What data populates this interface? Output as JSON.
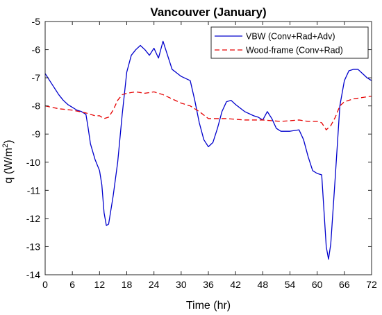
{
  "chart_data": {
    "type": "line",
    "title": "Vancouver (January)",
    "xlabel": "Time (hr)",
    "ylabel_prefix": "q (W/m",
    "ylabel_sup": "2",
    "ylabel_suffix": ")",
    "xlim": [
      0,
      72
    ],
    "ylim": [
      -14,
      -5
    ],
    "xticks": [
      "0",
      "6",
      "12",
      "18",
      "24",
      "30",
      "36",
      "42",
      "48",
      "54",
      "60",
      "66",
      "72"
    ],
    "yticks": [
      "-5",
      "-6",
      "-7",
      "-8",
      "-9",
      "-10",
      "-11",
      "-12",
      "-13",
      "-14"
    ],
    "grid": false,
    "legend_position": "top-right",
    "series": [
      {
        "name": "VBW (Conv+Rad+Adv)",
        "color": "#0000cc",
        "style": "solid",
        "points": [
          [
            0,
            -6.85
          ],
          [
            1,
            -7.1
          ],
          [
            2,
            -7.35
          ],
          [
            3,
            -7.6
          ],
          [
            4,
            -7.8
          ],
          [
            5,
            -7.95
          ],
          [
            6,
            -8.05
          ],
          [
            7,
            -8.15
          ],
          [
            8,
            -8.2
          ],
          [
            9,
            -8.3
          ],
          [
            9.5,
            -8.8
          ],
          [
            10,
            -9.35
          ],
          [
            11,
            -9.9
          ],
          [
            12,
            -10.3
          ],
          [
            12.5,
            -10.8
          ],
          [
            13,
            -11.8
          ],
          [
            13.5,
            -12.25
          ],
          [
            14,
            -12.2
          ],
          [
            15,
            -11.2
          ],
          [
            16,
            -10.0
          ],
          [
            17,
            -8.3
          ],
          [
            18,
            -6.8
          ],
          [
            19,
            -6.2
          ],
          [
            20,
            -6.0
          ],
          [
            21,
            -5.85
          ],
          [
            22,
            -6.0
          ],
          [
            23,
            -6.2
          ],
          [
            24,
            -5.95
          ],
          [
            25,
            -6.3
          ],
          [
            26,
            -5.7
          ],
          [
            27,
            -6.2
          ],
          [
            28,
            -6.7
          ],
          [
            30,
            -6.95
          ],
          [
            32,
            -7.1
          ],
          [
            33,
            -7.8
          ],
          [
            34,
            -8.6
          ],
          [
            35,
            -9.2
          ],
          [
            36,
            -9.45
          ],
          [
            37,
            -9.3
          ],
          [
            38,
            -8.8
          ],
          [
            39,
            -8.2
          ],
          [
            40,
            -7.85
          ],
          [
            41,
            -7.8
          ],
          [
            42,
            -7.95
          ],
          [
            44,
            -8.2
          ],
          [
            46,
            -8.35
          ],
          [
            47,
            -8.4
          ],
          [
            48,
            -8.5
          ],
          [
            49,
            -8.2
          ],
          [
            50,
            -8.45
          ],
          [
            51,
            -8.8
          ],
          [
            52,
            -8.9
          ],
          [
            54,
            -8.9
          ],
          [
            56,
            -8.85
          ],
          [
            57,
            -9.2
          ],
          [
            58,
            -9.8
          ],
          [
            59,
            -10.3
          ],
          [
            60,
            -10.4
          ],
          [
            61,
            -10.45
          ],
          [
            62,
            -13.0
          ],
          [
            62.5,
            -13.45
          ],
          [
            63,
            -12.9
          ],
          [
            64,
            -10.5
          ],
          [
            65,
            -8.0
          ],
          [
            66,
            -7.1
          ],
          [
            67,
            -6.75
          ],
          [
            68,
            -6.7
          ],
          [
            69,
            -6.7
          ],
          [
            70,
            -6.85
          ],
          [
            71,
            -7.0
          ],
          [
            72,
            -7.1
          ]
        ]
      },
      {
        "name": "Wood-frame (Conv+Rad)",
        "color": "#e60000",
        "style": "dashed",
        "points": [
          [
            0,
            -8.0
          ],
          [
            3,
            -8.1
          ],
          [
            6,
            -8.15
          ],
          [
            9,
            -8.25
          ],
          [
            11,
            -8.35
          ],
          [
            12,
            -8.35
          ],
          [
            13,
            -8.45
          ],
          [
            14,
            -8.4
          ],
          [
            15,
            -8.15
          ],
          [
            16,
            -7.8
          ],
          [
            17,
            -7.6
          ],
          [
            18,
            -7.55
          ],
          [
            20,
            -7.5
          ],
          [
            22,
            -7.55
          ],
          [
            24,
            -7.5
          ],
          [
            26,
            -7.6
          ],
          [
            28,
            -7.75
          ],
          [
            30,
            -7.9
          ],
          [
            32,
            -8.0
          ],
          [
            34,
            -8.2
          ],
          [
            36,
            -8.45
          ],
          [
            40,
            -8.45
          ],
          [
            44,
            -8.5
          ],
          [
            48,
            -8.5
          ],
          [
            52,
            -8.55
          ],
          [
            56,
            -8.5
          ],
          [
            58,
            -8.55
          ],
          [
            60,
            -8.55
          ],
          [
            61,
            -8.6
          ],
          [
            62,
            -8.85
          ],
          [
            63,
            -8.7
          ],
          [
            64,
            -8.4
          ],
          [
            65,
            -8.0
          ],
          [
            66,
            -7.85
          ],
          [
            68,
            -7.75
          ],
          [
            70,
            -7.7
          ],
          [
            72,
            -7.65
          ]
        ]
      }
    ]
  }
}
